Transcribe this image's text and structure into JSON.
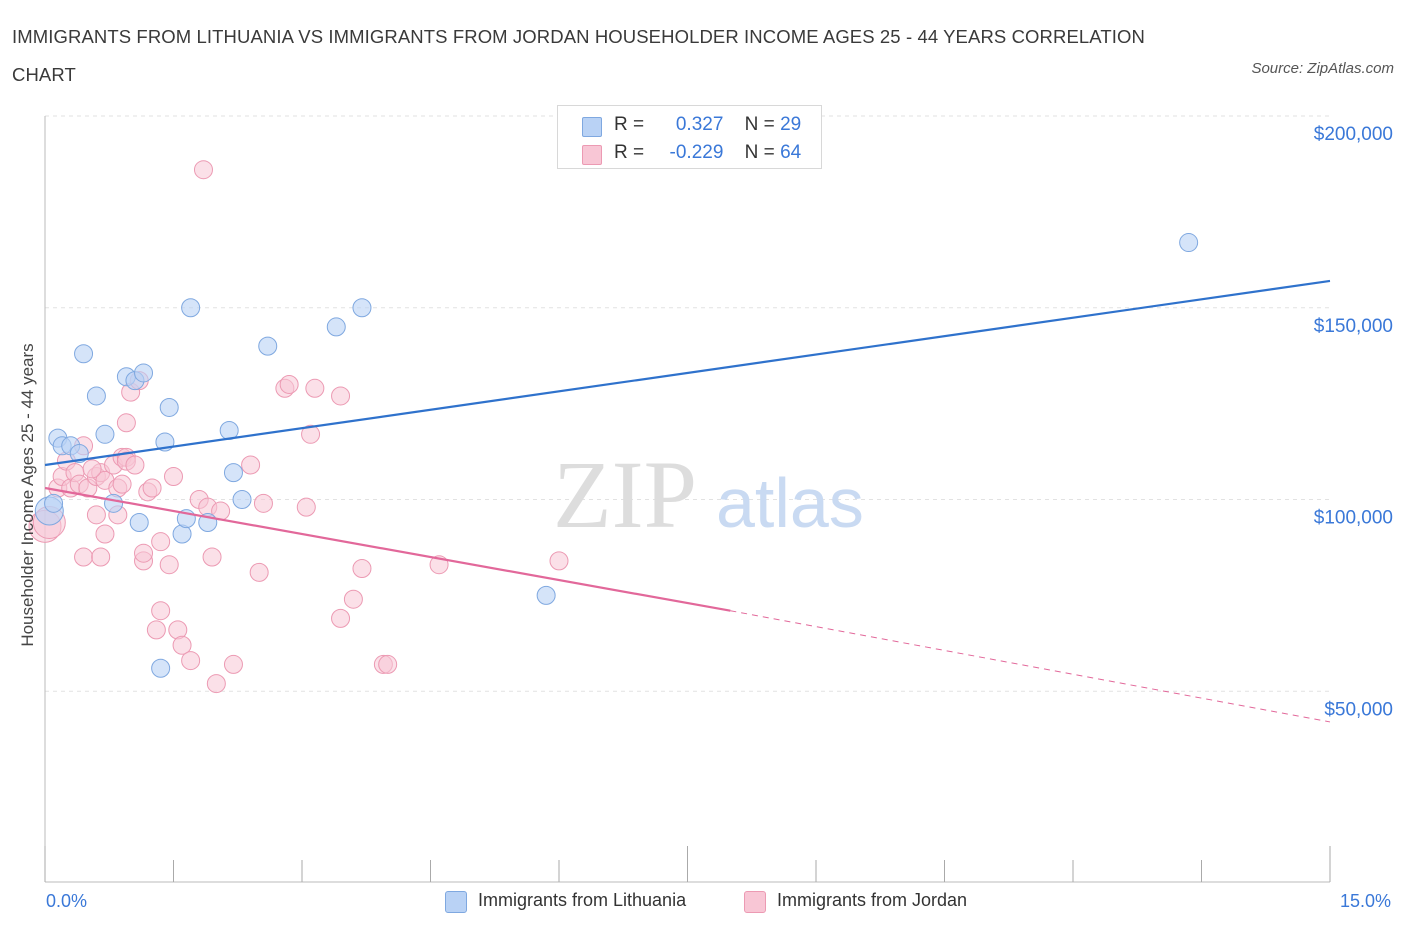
{
  "header": {
    "title": "IMMIGRANTS FROM LITHUANIA VS IMMIGRANTS FROM JORDAN HOUSEHOLDER INCOME AGES 25 - 44 YEARS CORRELATION CHART",
    "source": "Source: ZipAtlas.com"
  },
  "legend": {
    "rows": [
      {
        "r_label": "R =",
        "r_value": "0.327",
        "n_label": "N =",
        "n_value": "29"
      },
      {
        "r_label": "R =",
        "r_value": "-0.229",
        "n_label": "N =",
        "n_value": "64"
      }
    ]
  },
  "colors": {
    "lithuania_fill": "#b9d2f5",
    "lithuania_stroke": "#7fa8e0",
    "lithuania_line": "#2f72cc",
    "jordan_fill": "#f8c6d5",
    "jordan_stroke": "#ec9ab3",
    "jordan_line": "#e2689a",
    "tick_label": "#3a78d8",
    "grid": "#e2e2e2"
  },
  "watermark": {
    "zip": "ZIP",
    "atlas": "atlas"
  },
  "chart_data": {
    "type": "scatter",
    "title": "IMMIGRANTS FROM LITHUANIA VS IMMIGRANTS FROM JORDAN HOUSEHOLDER INCOME AGES 25 - 44 YEARS CORRELATION CHART",
    "xlabel": "",
    "ylabel": "Householder Income Ages 25 - 44 years",
    "xlim": [
      0,
      15
    ],
    "ylim": [
      0,
      200000
    ],
    "x_tick_labels": [
      "0.0%",
      "15.0%"
    ],
    "y_ticks": [
      {
        "value": 50000,
        "label": "$50,000"
      },
      {
        "value": 100000,
        "label": "$100,000"
      },
      {
        "value": 150000,
        "label": "$150,000"
      },
      {
        "value": 200000,
        "label": "$200,000"
      }
    ],
    "grid": "horizontal dashed",
    "series": [
      {
        "name": "Immigrants from Lithuania",
        "r": 0.327,
        "n": 29,
        "trend": {
          "x": [
            0,
            15
          ],
          "y": [
            109000,
            157000
          ]
        },
        "points": [
          [
            0.05,
            97000
          ],
          [
            0.15,
            116000
          ],
          [
            0.2,
            114000
          ],
          [
            0.3,
            114000
          ],
          [
            0.4,
            112000
          ],
          [
            0.45,
            138000
          ],
          [
            0.6,
            127000
          ],
          [
            0.7,
            117000
          ],
          [
            0.8,
            99000
          ],
          [
            0.95,
            132000
          ],
          [
            1.05,
            131000
          ],
          [
            1.1,
            94000
          ],
          [
            1.15,
            133000
          ],
          [
            1.35,
            56000
          ],
          [
            1.4,
            115000
          ],
          [
            1.45,
            124000
          ],
          [
            1.6,
            91000
          ],
          [
            1.65,
            95000
          ],
          [
            1.7,
            150000
          ],
          [
            1.9,
            94000
          ],
          [
            2.15,
            118000
          ],
          [
            2.2,
            107000
          ],
          [
            2.3,
            100000
          ],
          [
            2.6,
            140000
          ],
          [
            3.4,
            145000
          ],
          [
            3.7,
            150000
          ],
          [
            5.85,
            75000
          ],
          [
            13.35,
            167000
          ],
          [
            0.1,
            99000
          ]
        ]
      },
      {
        "name": "Immigrants from Jordan",
        "r": -0.229,
        "n": 64,
        "trend": {
          "x": [
            0,
            8
          ],
          "y": [
            103000,
            71000
          ],
          "dashed_to": {
            "x": 15,
            "y": 42000
          }
        },
        "points": [
          [
            0.0,
            93000
          ],
          [
            0.05,
            94000
          ],
          [
            0.15,
            103000
          ],
          [
            0.2,
            106000
          ],
          [
            0.25,
            110000
          ],
          [
            0.3,
            103000
          ],
          [
            0.35,
            107000
          ],
          [
            0.4,
            104000
          ],
          [
            0.45,
            114000
          ],
          [
            0.5,
            103000
          ],
          [
            0.45,
            85000
          ],
          [
            0.6,
            96000
          ],
          [
            0.6,
            106000
          ],
          [
            0.65,
            107000
          ],
          [
            0.65,
            85000
          ],
          [
            0.7,
            91000
          ],
          [
            0.7,
            105000
          ],
          [
            0.8,
            109000
          ],
          [
            0.85,
            103000
          ],
          [
            0.85,
            96000
          ],
          [
            0.9,
            111000
          ],
          [
            0.9,
            104000
          ],
          [
            0.95,
            111000
          ],
          [
            0.95,
            110000
          ],
          [
            0.95,
            120000
          ],
          [
            1.0,
            128000
          ],
          [
            1.05,
            109000
          ],
          [
            1.1,
            131000
          ],
          [
            1.15,
            84000
          ],
          [
            1.15,
            86000
          ],
          [
            1.2,
            102000
          ],
          [
            1.25,
            103000
          ],
          [
            1.3,
            66000
          ],
          [
            1.35,
            89000
          ],
          [
            1.35,
            71000
          ],
          [
            1.45,
            83000
          ],
          [
            1.5,
            106000
          ],
          [
            1.55,
            66000
          ],
          [
            1.6,
            62000
          ],
          [
            1.7,
            58000
          ],
          [
            1.8,
            100000
          ],
          [
            1.85,
            186000
          ],
          [
            1.9,
            98000
          ],
          [
            1.95,
            85000
          ],
          [
            2.0,
            52000
          ],
          [
            2.05,
            97000
          ],
          [
            2.2,
            57000
          ],
          [
            2.4,
            109000
          ],
          [
            2.5,
            81000
          ],
          [
            2.55,
            99000
          ],
          [
            2.8,
            129000
          ],
          [
            2.85,
            130000
          ],
          [
            3.05,
            98000
          ],
          [
            3.1,
            117000
          ],
          [
            3.15,
            129000
          ],
          [
            3.45,
            127000
          ],
          [
            3.45,
            69000
          ],
          [
            3.6,
            74000
          ],
          [
            3.7,
            82000
          ],
          [
            3.95,
            57000
          ],
          [
            4.0,
            57000
          ],
          [
            4.6,
            83000
          ],
          [
            6.0,
            84000
          ],
          [
            0.55,
            108000
          ]
        ]
      }
    ]
  }
}
